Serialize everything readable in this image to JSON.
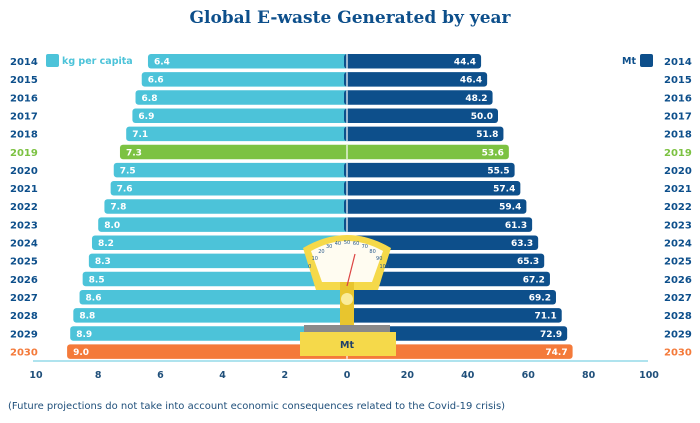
{
  "chart_data": {
    "type": "bar",
    "title": "Global E-waste Generated by year",
    "categories": [
      "2014",
      "2015",
      "2016",
      "2017",
      "2018",
      "2019",
      "2020",
      "2021",
      "2022",
      "2023",
      "2024",
      "2025",
      "2026",
      "2027",
      "2028",
      "2029",
      "2030"
    ],
    "series": [
      {
        "name": "kg per capita",
        "values": [
          6.4,
          6.6,
          6.8,
          6.9,
          7.1,
          7.3,
          7.5,
          7.6,
          7.8,
          8.0,
          8.2,
          8.3,
          8.5,
          8.6,
          8.8,
          8.9,
          9.0
        ]
      },
      {
        "name": "Mt",
        "values": [
          44.4,
          46.4,
          48.2,
          50.0,
          51.8,
          53.6,
          55.5,
          57.4,
          59.4,
          61.3,
          63.3,
          65.3,
          67.2,
          69.2,
          71.1,
          72.9,
          74.7
        ]
      }
    ],
    "value_labels": {
      "left": [
        "6.4",
        "6.6",
        "6.8",
        "6.9",
        "7.1",
        "7.3",
        "7.5",
        "7.6",
        "7.8",
        "8.0",
        "8.2",
        "8.3",
        "8.5",
        "8.6",
        "8.8",
        "8.9",
        "9.0"
      ],
      "right": [
        "44.4",
        "46.4",
        "48.2",
        "50.0",
        "51.8",
        "53.6",
        "55.5",
        "57.4",
        "59.4",
        "61.3",
        "63.3",
        "65.3",
        "67.2",
        "69.2",
        "71.1",
        "72.9",
        "74.7"
      ]
    },
    "left_axis": {
      "range": [
        10,
        0
      ],
      "ticks": [
        "10",
        "8",
        "6",
        "4",
        "2",
        "0"
      ]
    },
    "right_axis": {
      "range": [
        0,
        100
      ],
      "ticks": [
        "20",
        "40",
        "60",
        "80",
        "100"
      ]
    },
    "highlight": {
      "2019": "#7cc242",
      "2030": "#f47a3a"
    },
    "colors": {
      "left": "#4cc3d9",
      "right": "#0d4f8b",
      "highlight_2019": "#7cc242",
      "highlight_2030": "#f47a3a",
      "year_text": "#0d4f8b"
    },
    "legend": {
      "left_label": "kg per capita",
      "right_label": "Mt"
    },
    "scale_label": "Mt",
    "scale_dial_ticks": [
      "0",
      "10",
      "20",
      "30",
      "40",
      "50",
      "60",
      "70",
      "80",
      "90",
      "100"
    ]
  },
  "footnote": "(Future projections do not take into account economic consequences related to the Covid-19 crisis)"
}
